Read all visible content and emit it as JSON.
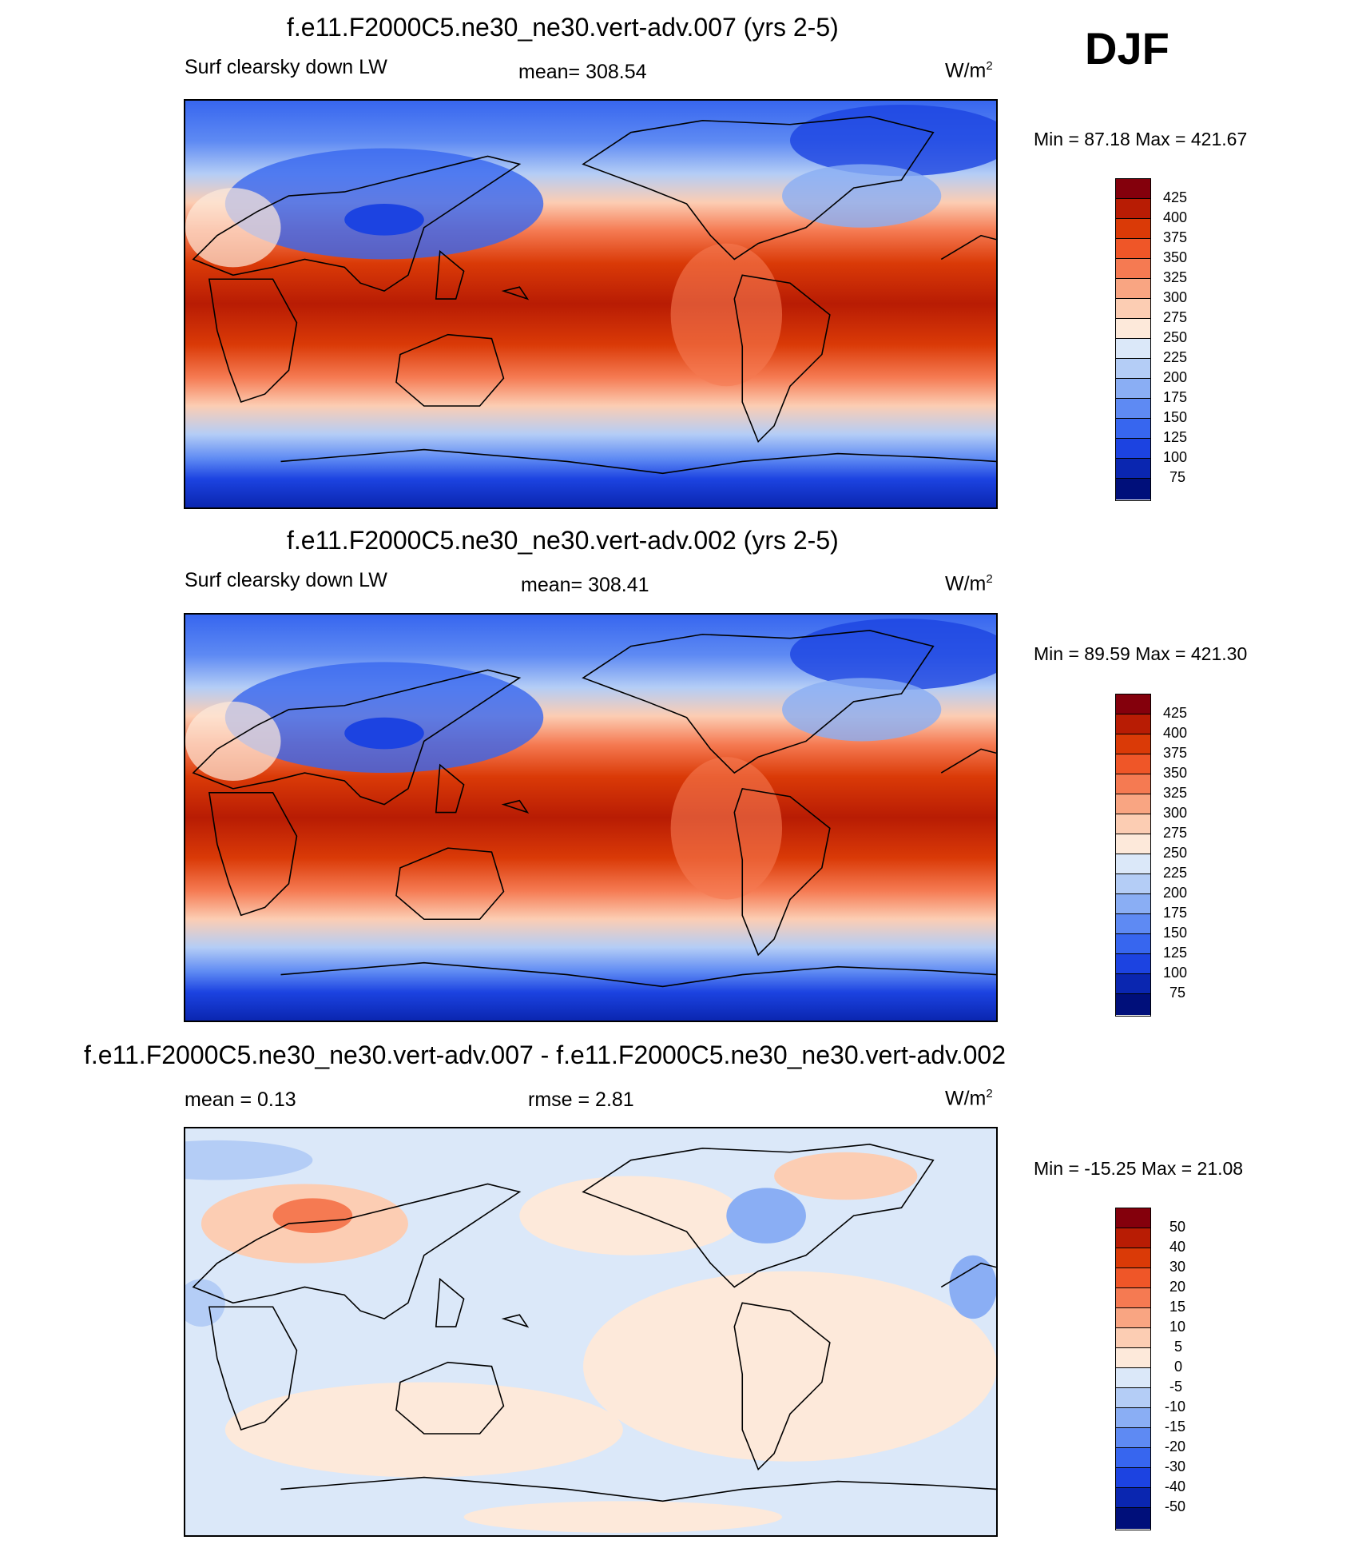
{
  "season": "DJF",
  "units_base": "W/m",
  "units_exp": "2",
  "panels": [
    {
      "title": "f.e11.F2000C5.ne30_ne30.vert-adv.007 (yrs 2-5)",
      "left": "Surf clearsky down LW",
      "center": "mean= 308.54",
      "minmax": "Min =  87.18 Max = 421.67",
      "colorbar": [
        "425",
        "400",
        "375",
        "350",
        "325",
        "300",
        "275",
        "250",
        "225",
        "200",
        "175",
        "150",
        "125",
        "100",
        "75"
      ]
    },
    {
      "title": "f.e11.F2000C5.ne30_ne30.vert-adv.002 (yrs 2-5)",
      "left": "Surf clearsky down LW",
      "center": "mean= 308.41",
      "minmax": "Min =  89.59 Max = 421.30",
      "colorbar": [
        "425",
        "400",
        "375",
        "350",
        "325",
        "300",
        "275",
        "250",
        "225",
        "200",
        "175",
        "150",
        "125",
        "100",
        "75"
      ]
    },
    {
      "title": "f.e11.F2000C5.ne30_ne30.vert-adv.007 - f.e11.F2000C5.ne30_ne30.vert-adv.002",
      "left": "mean =   0.13",
      "center": "rmse =   2.81",
      "minmax": "Min = -15.25 Max =  21.08",
      "colorbar": [
        "50",
        "40",
        "30",
        "20",
        "15",
        "10",
        "5",
        "0",
        "-5",
        "-10",
        "-15",
        "-20",
        "-30",
        "-40",
        "-50"
      ]
    }
  ],
  "colors": {
    "palette": [
      "#84000c",
      "#b81c04",
      "#da3a07",
      "#ef5628",
      "#f57a52",
      "#f9a582",
      "#fccdb3",
      "#fde9da",
      "#dbe8f9",
      "#b4cdf6",
      "#8aaef4",
      "#5e8af3",
      "#3766ef",
      "#1c43e1",
      "#0a26b0",
      "#000f7a"
    ]
  }
}
